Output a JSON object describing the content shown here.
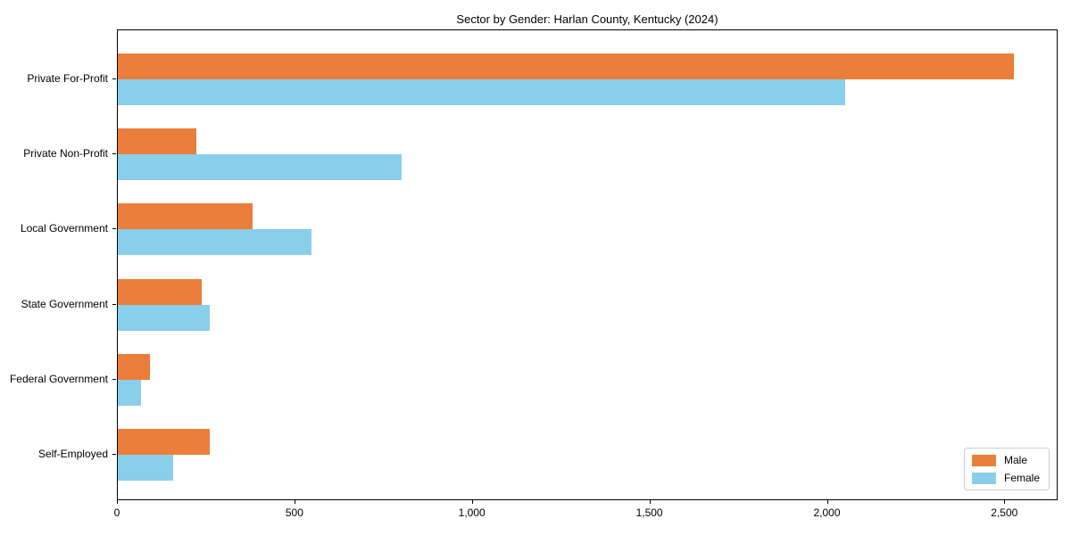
{
  "title": "Sector by Gender: Harlan County, Kentucky (2024)",
  "chart_data": {
    "type": "bar",
    "orientation": "horizontal",
    "title": "Sector by Gender: Harlan County, Kentucky (2024)",
    "categories": [
      "Private For-Profit",
      "Private Non-Profit",
      "Local Government",
      "State Government",
      "Federal Government",
      "Self-Employed"
    ],
    "series": [
      {
        "name": "Male",
        "color": "#ea7e3a",
        "values": [
          2525,
          220,
          380,
          235,
          90,
          260
        ]
      },
      {
        "name": "Female",
        "color": "#89ceeb",
        "values": [
          2050,
          800,
          545,
          260,
          65,
          155
        ]
      }
    ],
    "xlim": [
      0,
      2650
    ],
    "xticks": [
      0,
      500,
      1000,
      1500,
      2000,
      2500
    ],
    "xtick_labels": [
      "0",
      "500",
      "1,000",
      "1,500",
      "2,000",
      "2,500"
    ],
    "xlabel": "",
    "ylabel": "",
    "grid": false,
    "legend_position": "lower right"
  },
  "legend": {
    "entries": [
      "Male",
      "Female"
    ]
  }
}
